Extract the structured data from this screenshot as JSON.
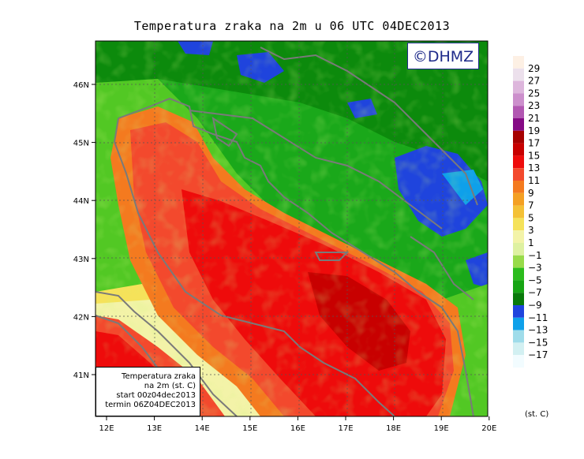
{
  "title": "Temperatura zraka na 2m u 06 UTC 04DEC2013",
  "logo_text": "©DHMZ",
  "info_box": {
    "line1": "Temperatura zraka",
    "line2": "na 2m (st. C)",
    "line3": "start 00z04dec2013",
    "line4": "termin 06Z04DEC2013"
  },
  "axes": {
    "lon_ticks": [
      "12E",
      "13E",
      "14E",
      "15E",
      "16E",
      "17E",
      "18E",
      "19E",
      "20E"
    ],
    "lat_ticks": [
      "46N",
      "45N",
      "44N",
      "43N",
      "42N",
      "41N"
    ]
  },
  "colorbar": {
    "unit": "(st. C)",
    "labels": [
      "29",
      "27",
      "25",
      "23",
      "21",
      "19",
      "17",
      "15",
      "13",
      "11",
      "9",
      "7",
      "5",
      "3",
      "1",
      "−1",
      "−3",
      "−5",
      "−7",
      "−9",
      "−11",
      "−13",
      "−15",
      "−17"
    ],
    "colors": [
      "#fdf0e4",
      "#ece0ec",
      "#ddb6dc",
      "#cc8fcc",
      "#b257b2",
      "#850a85",
      "#a60000",
      "#c80000",
      "#ee0b0b",
      "#f3492d",
      "#f47a1f",
      "#f4a023",
      "#f4c136",
      "#f5e25a",
      "#f3f3a8",
      "#def1a1",
      "#98db4a",
      "#2cbc1d",
      "#17a514",
      "#097a0a",
      "#1f44dd",
      "#0ea0ea",
      "#9fdcea",
      "#d2f0f2",
      "#f2fcff"
    ]
  },
  "map": {
    "land_color": "#1aa81a",
    "sea_warm_color": "#ee0b0b",
    "sea_hot_color": "#c80000",
    "coast_color": "#7a7a7a"
  }
}
